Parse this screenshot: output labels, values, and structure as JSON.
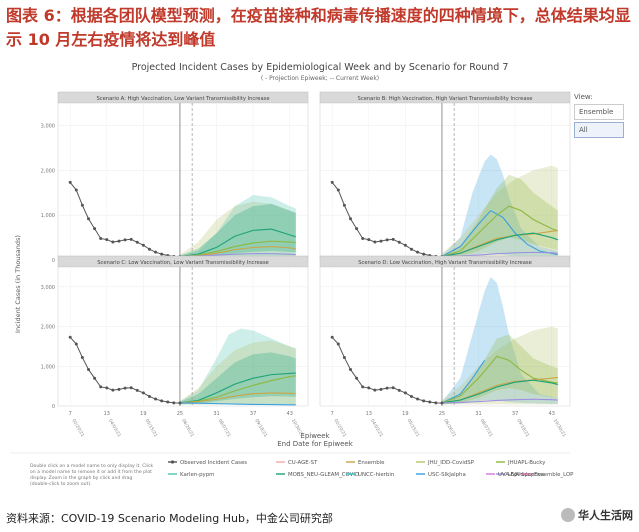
{
  "headline": "图表 6：根据各团队模型预测，在疫苗接种和病毒传播速度的四种情境下，总体结果均显示 10 月左右疫情将达到峰值",
  "source": "资料来源：COVID-19 Scenario Modeling Hub，中金公司研究部",
  "watermark": "华人生活网",
  "view_selector": {
    "label": "View:",
    "options": [
      "Ensemble",
      "All"
    ],
    "selected": "All"
  },
  "chart_data": {
    "type": "line",
    "title": "Projected Incident Cases by Epidemiological Week and by Scenario for Round 7",
    "subtitle": "( - Projection Epiweek; -- Current Week)",
    "xlabel": "Epiweek",
    "xlabel2": "End Date for Epiweek",
    "ylabel": "Incident Cases (in Thousands)",
    "ylim": [
      0,
      3500
    ],
    "yticks": [
      0,
      1000,
      2000,
      3000
    ],
    "ytick_labels": [
      "0",
      "1,000",
      "2,000",
      "3,000"
    ],
    "xlim": [
      5,
      46
    ],
    "xticks": [
      7,
      13,
      19,
      25,
      31,
      37,
      43
    ],
    "xtick_labels": [
      "02/20/21",
      "04/03/21",
      "05/15/21",
      "06/26/21",
      "08/07/21",
      "09/18/21",
      "10/30/21"
    ],
    "projection_start_week": 25,
    "current_week": 27,
    "grid": true,
    "legend_position": "bottom",
    "legend_note": "Double click on a model name to only display it. Click on a model name to remove it or add it from the plot display. Zoom in the graph by click and drag (double-click to zoom out).",
    "legend": [
      {
        "name": "Observed Incident Cases",
        "color": "#555555"
      },
      {
        "name": "CU-AGE-ST",
        "color": "#f4a8a8"
      },
      {
        "name": "Ensemble",
        "color": "#c9a64a"
      },
      {
        "name": "JHU_IDD-CovidSP",
        "color": "#b7c26a"
      },
      {
        "name": "JHUAPL-Bucky",
        "color": "#8db83f"
      },
      {
        "name": "Karlen-pypm",
        "color": "#4fc3b4"
      },
      {
        "name": "MOBS_NEU-GLEAM_COVID",
        "color": "#1aa37a"
      },
      {
        "name": "UNCC-hierbin",
        "color": "#2ec4c4"
      },
      {
        "name": "USC-SIkJalpha",
        "color": "#3aa0e0"
      },
      {
        "name": "UVA-adaptive",
        "color": "#9b8fe0"
      },
      {
        "name": "UVA-EpiHiper",
        "color": "#d27ad8"
      },
      {
        "name": "Ensemble_LOP",
        "color": "#e07ab0"
      }
    ],
    "observed": {
      "x": [
        7,
        8,
        9,
        10,
        11,
        12,
        13,
        14,
        15,
        16,
        17,
        18,
        19,
        20,
        21,
        22,
        23,
        24,
        25
      ],
      "values": [
        1730,
        1560,
        1220,
        920,
        700,
        480,
        455,
        400,
        420,
        450,
        460,
        395,
        330,
        240,
        175,
        130,
        100,
        80,
        75
      ]
    },
    "panels": [
      {
        "title": "Scenario A: High Vaccination, Low Variant Transmissibility Increase",
        "series": [
          {
            "name": "MOBS_NEU-GLEAM_COVID",
            "x": [
              25,
              28,
              31,
              34,
              37,
              40,
              43,
              44
            ],
            "values": [
              80,
              130,
              280,
              530,
              660,
              690,
              560,
              520
            ]
          },
          {
            "name": "Ensemble",
            "x": [
              25,
              28,
              31,
              34,
              37,
              40,
              43,
              44
            ],
            "values": [
              80,
              100,
              150,
              230,
              280,
              300,
              270,
              250
            ]
          },
          {
            "name": "JHUAPL-Bucky",
            "x": [
              25,
              28,
              31,
              34,
              37,
              40,
              43,
              44
            ],
            "values": [
              80,
              110,
              190,
              300,
              380,
              420,
              400,
              390
            ]
          },
          {
            "name": "USC-SIkJalpha",
            "x": [
              25,
              28,
              31,
              34,
              37,
              40,
              43,
              44
            ],
            "values": [
              80,
              70,
              60,
              50,
              40,
              35,
              30,
              30
            ]
          },
          {
            "name": "UVA-adaptive",
            "x": [
              25,
              28,
              31,
              34,
              37,
              40,
              43,
              44
            ],
            "values": [
              80,
              90,
              110,
              130,
              140,
              140,
              130,
              120
            ]
          }
        ],
        "bands": [
          {
            "name": "JHU_IDD-CovidSP",
            "x": [
              25,
              28,
              31,
              34,
              37,
              40,
              43,
              44
            ],
            "upper": [
              120,
              400,
              900,
              1200,
              1300,
              1250,
              1100,
              1050
            ],
            "lower": [
              40,
              40,
              40,
              40,
              40,
              40,
              40,
              40
            ]
          },
          {
            "name": "Karlen-pypm",
            "x": [
              25,
              28,
              31,
              34,
              37,
              40,
              43,
              44
            ],
            "upper": [
              100,
              200,
              600,
              1200,
              1450,
              1400,
              1200,
              1150
            ],
            "lower": [
              40,
              40,
              40,
              40,
              40,
              40,
              40,
              40
            ]
          },
          {
            "name": "MOBS_NEU-GLEAM_COVID",
            "x": [
              25,
              28,
              31,
              34,
              37,
              40,
              43,
              44
            ],
            "upper": [
              100,
              250,
              600,
              1000,
              1200,
              1250,
              1100,
              1050
            ],
            "lower": [
              40,
              60,
              100,
              150,
              180,
              200,
              180,
              170
            ]
          }
        ]
      },
      {
        "title": "Scenario B: High Vaccination, High Variant Transmissibility Increase",
        "series": [
          {
            "name": "USC-SIkJalpha",
            "x": [
              25,
              28,
              31,
              33,
              35,
              37,
              39,
              41,
              44
            ],
            "values": [
              80,
              300,
              800,
              1100,
              950,
              600,
              350,
              200,
              120
            ]
          },
          {
            "name": "JHUAPL-Bucky",
            "x": [
              25,
              28,
              31,
              34,
              36,
              38,
              40,
              43,
              44
            ],
            "values": [
              80,
              200,
              600,
              1000,
              1200,
              1100,
              900,
              700,
              650
            ]
          },
          {
            "name": "Ensemble",
            "x": [
              25,
              28,
              31,
              34,
              37,
              40,
              43,
              44
            ],
            "values": [
              80,
              150,
              320,
              480,
              550,
              580,
              640,
              660
            ]
          },
          {
            "name": "MOBS_NEU-GLEAM_COVID",
            "x": [
              25,
              28,
              31,
              34,
              37,
              40,
              43,
              44
            ],
            "values": [
              80,
              150,
              300,
              450,
              550,
              600,
              500,
              450
            ]
          },
          {
            "name": "UVA-adaptive",
            "x": [
              25,
              28,
              31,
              34,
              37,
              40,
              43,
              44
            ],
            "values": [
              80,
              90,
              110,
              140,
              160,
              170,
              160,
              150
            ]
          }
        ],
        "bands": [
          {
            "name": "USC-SIkJalpha",
            "x": [
              25,
              28,
              30,
              32,
              33,
              34,
              35,
              36,
              38,
              41,
              44
            ],
            "upper": [
              100,
              500,
              1500,
              2200,
              2350,
              2250,
              1900,
              1400,
              700,
              300,
              200
            ],
            "lower": [
              40,
              60,
              100,
              150,
              150,
              140,
              120,
              100,
              80,
              60,
              50
            ]
          },
          {
            "name": "JHU_IDD-CovidSP",
            "x": [
              25,
              28,
              31,
              34,
              37,
              40,
              43,
              44
            ],
            "upper": [
              150,
              500,
              1000,
              1500,
              1800,
              2000,
              2100,
              2050
            ],
            "lower": [
              40,
              40,
              40,
              40,
              40,
              40,
              40,
              40
            ]
          },
          {
            "name": "JHUAPL-Bucky",
            "x": [
              25,
              28,
              31,
              34,
              36,
              38,
              40,
              43,
              44
            ],
            "upper": [
              100,
              300,
              900,
              1600,
              1900,
              1800,
              1500,
              1200,
              1100
            ],
            "lower": [
              40,
              80,
              200,
              400,
              500,
              450,
              350,
              250,
              220
            ]
          }
        ]
      },
      {
        "title": "Scenario C: Low Vaccination, Low Variant Transmissibility Increase",
        "series": [
          {
            "name": "MOBS_NEU-GLEAM_COVID",
            "x": [
              25,
              28,
              31,
              34,
              37,
              40,
              43,
              44
            ],
            "values": [
              80,
              140,
              330,
              550,
              700,
              790,
              820,
              830
            ]
          },
          {
            "name": "JHUAPL-Bucky",
            "x": [
              25,
              28,
              31,
              34,
              37,
              40,
              43,
              44
            ],
            "values": [
              80,
              120,
              220,
              380,
              520,
              640,
              740,
              760
            ]
          },
          {
            "name": "Ensemble",
            "x": [
              25,
              28,
              31,
              34,
              37,
              40,
              43,
              44
            ],
            "values": [
              80,
              110,
              170,
              250,
              310,
              330,
              320,
              310
            ]
          },
          {
            "name": "USC-SIkJalpha",
            "x": [
              25,
              28,
              31,
              34,
              37,
              40,
              43,
              44
            ],
            "values": [
              80,
              70,
              60,
              50,
              40,
              35,
              30,
              30
            ]
          }
        ],
        "bands": [
          {
            "name": "Karlen-pypm",
            "x": [
              25,
              28,
              31,
              33,
              35,
              37,
              40,
              43,
              44
            ],
            "upper": [
              120,
              400,
              1200,
              1800,
              1950,
              1900,
              1700,
              1500,
              1450
            ],
            "lower": [
              40,
              40,
              40,
              40,
              40,
              40,
              40,
              40,
              40
            ]
          },
          {
            "name": "JHU_IDD-CovidSP",
            "x": [
              25,
              28,
              31,
              34,
              37,
              40,
              43,
              44
            ],
            "upper": [
              120,
              450,
              1000,
              1400,
              1600,
              1650,
              1500,
              1450
            ],
            "lower": [
              40,
              40,
              40,
              40,
              40,
              40,
              40,
              40
            ]
          },
          {
            "name": "MOBS_NEU-GLEAM_COVID",
            "x": [
              25,
              28,
              31,
              34,
              37,
              40,
              43,
              44
            ],
            "upper": [
              100,
              300,
              700,
              1100,
              1300,
              1350,
              1250,
              1200
            ],
            "lower": [
              40,
              60,
              120,
              180,
              220,
              250,
              240,
              230
            ]
          }
        ]
      },
      {
        "title": "Scenario D: Low Vaccination, High Variant Transmissibility Increase",
        "series": [
          {
            "name": "USC-SIkJalpha",
            "x": [
              25,
              28,
              30,
              32
            ],
            "values": [
              80,
              300,
              700,
              1150
            ]
          },
          {
            "name": "JHUAPL-Bucky",
            "x": [
              25,
              28,
              31,
              34,
              36,
              38,
              40,
              43,
              44
            ],
            "values": [
              80,
              250,
              700,
              1250,
              1150,
              900,
              700,
              600,
              580
            ]
          },
          {
            "name": "Ensemble",
            "x": [
              25,
              28,
              31,
              34,
              37,
              40,
              43,
              44
            ],
            "values": [
              80,
              150,
              330,
              520,
              620,
              660,
              700,
              720
            ]
          },
          {
            "name": "MOBS_NEU-GLEAM_COVID",
            "x": [
              25,
              28,
              31,
              34,
              37,
              40,
              43,
              44
            ],
            "values": [
              80,
              150,
              300,
              480,
              600,
              650,
              580,
              540
            ]
          },
          {
            "name": "UVA-adaptive",
            "x": [
              25,
              28,
              31,
              34,
              37,
              40,
              43,
              44
            ],
            "values": [
              80,
              90,
              110,
              140,
              160,
              170,
              160,
              150
            ]
          }
        ],
        "bands": [
          {
            "name": "USC-SIkJalpha",
            "x": [
              25,
              28,
              30,
              32,
              33,
              34,
              35,
              36,
              38,
              41,
              44
            ],
            "upper": [
              100,
              700,
              1800,
              2900,
              3250,
              3100,
              2500,
              1800,
              800,
              300,
              200
            ],
            "lower": [
              40,
              60,
              100,
              150,
              150,
              140,
              120,
              100,
              80,
              60,
              50
            ]
          },
          {
            "name": "JHU_IDD-CovidSP",
            "x": [
              25,
              28,
              31,
              34,
              37,
              40,
              43,
              44
            ],
            "upper": [
              150,
              500,
              1000,
              1400,
              1700,
              1900,
              2000,
              1950
            ],
            "lower": [
              40,
              40,
              40,
              40,
              40,
              40,
              40,
              40
            ]
          },
          {
            "name": "JHUAPL-Bucky",
            "x": [
              25,
              28,
              31,
              34,
              36,
              38,
              40,
              43,
              44
            ],
            "upper": [
              100,
              300,
              900,
              1700,
              1800,
              1500,
              1200,
              1000,
              950
            ],
            "lower": [
              40,
              80,
              200,
              400,
              450,
              400,
              300,
              220,
              200
            ]
          }
        ]
      }
    ]
  }
}
